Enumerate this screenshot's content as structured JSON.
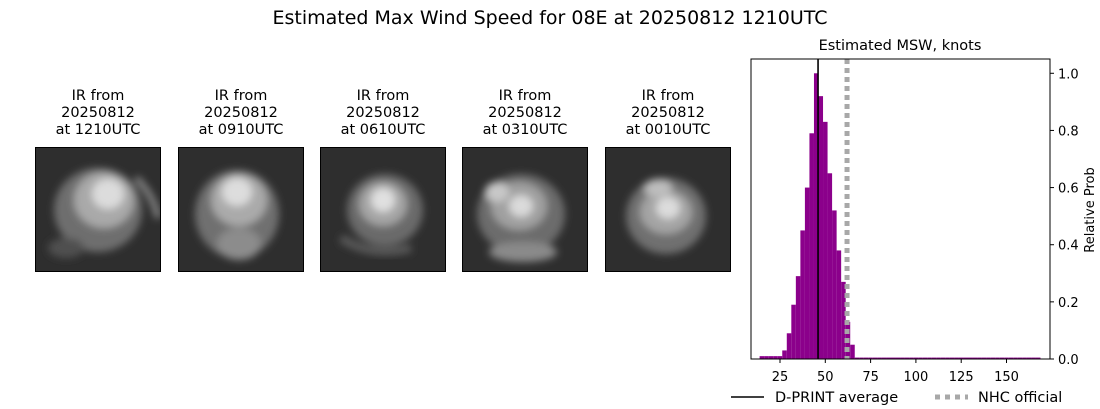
{
  "main_title": "Estimated Max Wind Speed for 08E at 20250812 1210UTC",
  "ir_panels": [
    {
      "caption": [
        "IR from",
        "20250812",
        "at 1210UTC"
      ]
    },
    {
      "caption": [
        "IR from",
        "20250812",
        "at 0910UTC"
      ]
    },
    {
      "caption": [
        "IR from",
        "20250812",
        "at 0610UTC"
      ]
    },
    {
      "caption": [
        "IR from",
        "20250812",
        "at 0310UTC"
      ]
    },
    {
      "caption": [
        "IR from",
        "20250812",
        "at 0010UTC"
      ]
    }
  ],
  "chart_data": {
    "type": "bar",
    "title": "Estimated MSW, knots",
    "xlabel": "",
    "ylabel": "Relative Prob",
    "xlim": [
      9,
      174
    ],
    "ylim": [
      0,
      1.05
    ],
    "x_ticks": [
      25,
      50,
      75,
      100,
      125,
      150
    ],
    "y_ticks": [
      0.0,
      0.2,
      0.4,
      0.6,
      0.8,
      1.0
    ],
    "y_axis_side": "right",
    "bin_width": 2.5,
    "bins": [
      {
        "x": 15,
        "value": 0.01
      },
      {
        "x": 17.5,
        "value": 0.01
      },
      {
        "x": 20,
        "value": 0.01
      },
      {
        "x": 22.5,
        "value": 0.01
      },
      {
        "x": 25,
        "value": 0.01
      },
      {
        "x": 27.5,
        "value": 0.03
      },
      {
        "x": 30,
        "value": 0.09
      },
      {
        "x": 32.5,
        "value": 0.19
      },
      {
        "x": 35,
        "value": 0.29
      },
      {
        "x": 37.5,
        "value": 0.45
      },
      {
        "x": 40,
        "value": 0.6
      },
      {
        "x": 42.5,
        "value": 0.79
      },
      {
        "x": 45,
        "value": 1.0
      },
      {
        "x": 47.5,
        "value": 0.92
      },
      {
        "x": 50,
        "value": 0.83
      },
      {
        "x": 52.5,
        "value": 0.65
      },
      {
        "x": 55,
        "value": 0.52
      },
      {
        "x": 57.5,
        "value": 0.38
      },
      {
        "x": 60,
        "value": 0.27
      },
      {
        "x": 62.5,
        "value": 0.13
      },
      {
        "x": 65,
        "value": 0.05
      },
      {
        "x": 67.5,
        "value": 0.005
      },
      {
        "x": 70,
        "value": 0.005
      },
      {
        "x": 72.5,
        "value": 0.005
      },
      {
        "x": 75,
        "value": 0.005
      },
      {
        "x": 77.5,
        "value": 0.005
      },
      {
        "x": 80,
        "value": 0.005
      },
      {
        "x": 82.5,
        "value": 0.005
      },
      {
        "x": 85,
        "value": 0.005
      },
      {
        "x": 87.5,
        "value": 0.005
      },
      {
        "x": 90,
        "value": 0.005
      },
      {
        "x": 92.5,
        "value": 0.005
      },
      {
        "x": 95,
        "value": 0.005
      },
      {
        "x": 97.5,
        "value": 0.005
      },
      {
        "x": 100,
        "value": 0.005
      },
      {
        "x": 102.5,
        "value": 0.005
      },
      {
        "x": 105,
        "value": 0.005
      },
      {
        "x": 107.5,
        "value": 0.005
      },
      {
        "x": 110,
        "value": 0.005
      },
      {
        "x": 112.5,
        "value": 0.005
      },
      {
        "x": 115,
        "value": 0.005
      },
      {
        "x": 117.5,
        "value": 0.005
      },
      {
        "x": 120,
        "value": 0.005
      },
      {
        "x": 122.5,
        "value": 0.005
      },
      {
        "x": 125,
        "value": 0.005
      },
      {
        "x": 127.5,
        "value": 0.005
      },
      {
        "x": 130,
        "value": 0.005
      },
      {
        "x": 132.5,
        "value": 0.005
      },
      {
        "x": 135,
        "value": 0.005
      },
      {
        "x": 137.5,
        "value": 0.005
      },
      {
        "x": 140,
        "value": 0.005
      },
      {
        "x": 142.5,
        "value": 0.005
      },
      {
        "x": 145,
        "value": 0.005
      },
      {
        "x": 147.5,
        "value": 0.005
      },
      {
        "x": 150,
        "value": 0.005
      },
      {
        "x": 152.5,
        "value": 0.005
      },
      {
        "x": 155,
        "value": 0.005
      },
      {
        "x": 157.5,
        "value": 0.005
      },
      {
        "x": 160,
        "value": 0.005
      },
      {
        "x": 162.5,
        "value": 0.005
      },
      {
        "x": 165,
        "value": 0.005
      },
      {
        "x": 167.5,
        "value": 0.005
      }
    ],
    "bar_color": "#8b008b",
    "reference_lines": [
      {
        "name": "D-PRINT average",
        "x": 46,
        "color": "#000000",
        "style": "solid"
      },
      {
        "name": "NHC official",
        "x": 62,
        "color": "#a8a8a8",
        "style": "dotted"
      }
    ],
    "legend": "bottom"
  }
}
